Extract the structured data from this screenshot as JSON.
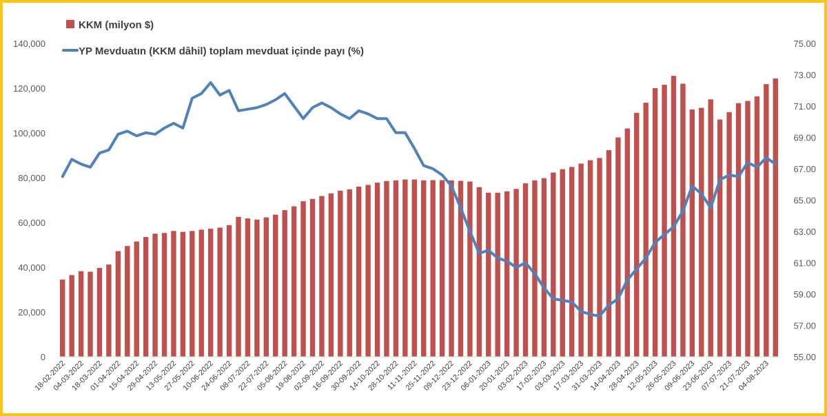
{
  "chart_data": {
    "type": "bar+line",
    "title": "",
    "colors": {
      "bar": "#c0504d",
      "line": "#4f81bd",
      "frame": "#f5c518"
    },
    "legend": {
      "placement": "top-left",
      "entries": [
        "KKM (milyon $)",
        "YP Mevduatın (KKM dâhil) toplam mevduat içinde payı (%)"
      ]
    },
    "x_tick_labels": [
      "18-02-2022",
      "04-03-2022",
      "18-03-2022",
      "01-04-2022",
      "15-04-2022",
      "29-04-2022",
      "13-05-2022",
      "27-05-2022",
      "10-06-2022",
      "24-06-2022",
      "08-07-2022",
      "22-07-2022",
      "05-08-2022",
      "19-08-2022",
      "02-09-2022",
      "16-09-2022",
      "30-09-2022",
      "14-10-2022",
      "28-10-2022",
      "11-11-2022",
      "25-11-2022",
      "09-12-2022",
      "23-12-2022",
      "06-01-2023",
      "20-01-2023",
      "03-02-2023",
      "17-02-2023",
      "03-03-2023",
      "17-03-2023",
      "31-03-2023",
      "14-04-2023",
      "28-04-2023",
      "12-05-2023",
      "26-05-2023",
      "09-06-2023",
      "23-06-2023",
      "07-07-2023",
      "21-07-2023",
      "04-08-2023"
    ],
    "y_left": {
      "min": 0,
      "max": 140000,
      "step": 20000,
      "tick_labels": [
        "0",
        "20,000",
        "40,000",
        "60,000",
        "80,000",
        "100,000",
        "120,000",
        "140,000"
      ]
    },
    "y_right": {
      "min": 55,
      "max": 75,
      "step": 2,
      "tick_labels": [
        "55.00",
        "57.00",
        "59.00",
        "61.00",
        "63.00",
        "65.00",
        "67.00",
        "69.00",
        "71.00",
        "73.00",
        "75.00"
      ]
    },
    "series": [
      {
        "name": "KKM (milyon $)",
        "type": "bar",
        "axis": "left",
        "values": [
          34500,
          36500,
          38200,
          38000,
          39700,
          41200,
          47200,
          49500,
          51500,
          53500,
          55000,
          55300,
          56200,
          55800,
          56200,
          56800,
          57200,
          57700,
          58800,
          62500,
          61800,
          61300,
          62300,
          63500,
          65500,
          67200,
          69500,
          70500,
          71800,
          73000,
          74200,
          74800,
          76000,
          76800,
          77800,
          78500,
          78800,
          79200,
          79200,
          78800,
          78900,
          78900,
          78800,
          78600,
          78300,
          75800,
          73300,
          73300,
          73900,
          75000,
          77500,
          78800,
          79800,
          82300,
          83800,
          84800,
          86300,
          87800,
          88800,
          92300,
          98000,
          102000,
          109000,
          113500,
          120000,
          121500,
          125500,
          122000,
          110500,
          111200,
          115000,
          106000,
          109300,
          113300,
          114300,
          116300,
          121800,
          124300
        ]
      },
      {
        "name": "YP Mevduatın (KKM dâhil) toplam mevduat içinde payı (%)",
        "type": "line",
        "axis": "right",
        "values": [
          66.5,
          67.6,
          67.3,
          67.1,
          68.0,
          68.2,
          69.2,
          69.4,
          69.1,
          69.3,
          69.2,
          69.6,
          69.9,
          69.6,
          71.5,
          71.8,
          72.5,
          71.7,
          72.0,
          70.7,
          70.8,
          70.9,
          71.1,
          71.4,
          71.8,
          71.0,
          70.2,
          70.9,
          71.2,
          70.9,
          70.5,
          70.2,
          70.7,
          70.5,
          70.2,
          70.2,
          69.3,
          69.3,
          68.3,
          67.2,
          67.0,
          66.6,
          65.9,
          64.5,
          63.0,
          61.6,
          61.8,
          61.3,
          61.1,
          60.7,
          61.0,
          60.3,
          59.4,
          58.7,
          58.6,
          58.5,
          57.9,
          57.7,
          57.6,
          58.3,
          58.7,
          59.9,
          60.6,
          61.3,
          62.3,
          62.8,
          63.3,
          64.3,
          65.9,
          65.4,
          64.5,
          66.3,
          66.6,
          66.5,
          67.4,
          67.1,
          67.7,
          67.3
        ]
      }
    ]
  }
}
